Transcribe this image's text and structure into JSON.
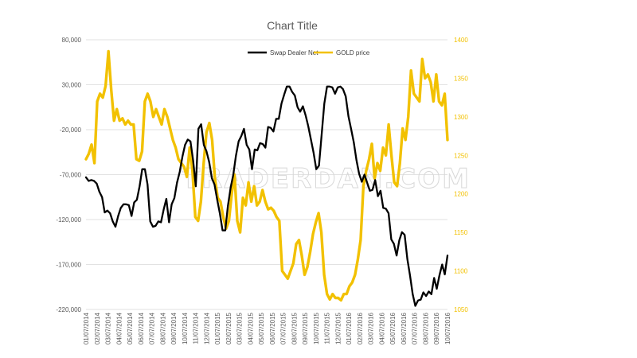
{
  "watermark": "TRADERDAN.COM",
  "chart_data": {
    "type": "line",
    "title": "Chart Title",
    "legend_position": "top-center",
    "grid": "horizontal",
    "x_tick_labels": [
      "01/07/2014",
      "02/07/2014",
      "03/07/2014",
      "04/07/2014",
      "05/07/2014",
      "06/07/2014",
      "07/07/2014",
      "08/07/2014",
      "09/07/2014",
      "10/07/2014",
      "11/07/2014",
      "12/07/2014",
      "01/07/2015",
      "02/07/2015",
      "03/07/2015",
      "04/07/2015",
      "05/07/2015",
      "06/07/2015",
      "07/07/2015",
      "08/07/2015",
      "09/07/2015",
      "10/07/2015",
      "11/07/2015",
      "12/07/2015",
      "01/07/2016",
      "02/07/2016",
      "03/07/2016",
      "04/07/2016",
      "05/07/2016",
      "06/07/2016",
      "07/07/2016",
      "08/07/2016",
      "09/07/2016",
      "10/07/2016"
    ],
    "y_left": {
      "min": -220000,
      "max": 80000,
      "step": 50000,
      "tick_labels": [
        "80,000",
        "30,000",
        "-20,000",
        "-70,000",
        "-120,000",
        "-170,000",
        "-220,000"
      ]
    },
    "y_right": {
      "min": 1050,
      "max": 1400,
      "step": 50,
      "tick_labels": [
        "1400",
        "1350",
        "1300",
        "1250",
        "1200",
        "1150",
        "1100",
        "1050"
      ]
    },
    "series": [
      {
        "name": "Swap Dealer Net",
        "color": "#000000",
        "axis": "left",
        "values": [
          -73000,
          -77000,
          -76000,
          -77000,
          -80000,
          -89000,
          -95000,
          -112000,
          -110000,
          -113000,
          -122000,
          -128000,
          -116000,
          -107000,
          -103000,
          -103000,
          -104000,
          -116000,
          -101000,
          -98000,
          -83000,
          -64000,
          -64000,
          -81000,
          -122000,
          -128000,
          -127000,
          -122000,
          -123000,
          -109000,
          -97000,
          -123000,
          -103000,
          -96000,
          -79000,
          -67000,
          -50000,
          -37000,
          -31000,
          -33000,
          -54000,
          -83000,
          -19000,
          -14000,
          -37000,
          -44000,
          -56000,
          -74000,
          -81000,
          -98000,
          -113000,
          -132000,
          -132000,
          -105000,
          -85000,
          -70000,
          -49000,
          -33000,
          -27000,
          -19000,
          -37000,
          -42000,
          -64000,
          -42000,
          -43000,
          -35000,
          -36000,
          -40000,
          -17000,
          -18000,
          -22000,
          -8000,
          -8000,
          9000,
          19000,
          28000,
          28000,
          22000,
          18000,
          5000,
          0,
          6000,
          -4000,
          -16000,
          -31000,
          -46000,
          -64000,
          -60000,
          -26000,
          9000,
          28000,
          28000,
          27000,
          20000,
          27000,
          28000,
          25000,
          17000,
          -5000,
          -19000,
          -34000,
          -54000,
          -69000,
          -78000,
          -70000,
          -79000,
          -88000,
          -87000,
          -76000,
          -94000,
          -88000,
          -107000,
          -108000,
          -113000,
          -142000,
          -147000,
          -160000,
          -143000,
          -134000,
          -137000,
          -164000,
          -182000,
          -203000,
          -216000,
          -210000,
          -209000,
          -201000,
          -205000,
          -200000,
          -203000,
          -185000,
          -197000,
          -182000,
          -170000,
          -181000,
          -160000
        ]
      },
      {
        "name": "GOLD price",
        "color": "#f2c100",
        "axis": "right",
        "values": [
          1245,
          1252,
          1264,
          1240,
          1320,
          1330,
          1325,
          1340,
          1385,
          1335,
          1295,
          1310,
          1295,
          1298,
          1290,
          1295,
          1290,
          1290,
          1245,
          1243,
          1255,
          1320,
          1330,
          1320,
          1300,
          1310,
          1300,
          1290,
          1310,
          1300,
          1285,
          1270,
          1260,
          1245,
          1240,
          1235,
          1222,
          1260,
          1230,
          1170,
          1165,
          1190,
          1240,
          1280,
          1292,
          1270,
          1220,
          1195,
          1190,
          1170,
          1155,
          1165,
          1200,
          1225,
          1165,
          1150,
          1195,
          1185,
          1215,
          1190,
          1210,
          1185,
          1190,
          1205,
          1190,
          1180,
          1182,
          1178,
          1170,
          1165,
          1100,
          1095,
          1090,
          1100,
          1110,
          1135,
          1140,
          1120,
          1095,
          1105,
          1125,
          1148,
          1163,
          1175,
          1150,
          1095,
          1070,
          1063,
          1070,
          1065,
          1065,
          1062,
          1070,
          1070,
          1080,
          1085,
          1095,
          1115,
          1140,
          1210,
          1230,
          1245,
          1265,
          1220,
          1240,
          1230,
          1260,
          1250,
          1290,
          1250,
          1215,
          1210,
          1240,
          1285,
          1270,
          1300,
          1360,
          1330,
          1325,
          1320,
          1375,
          1350,
          1355,
          1345,
          1320,
          1355,
          1320,
          1315,
          1330,
          1270
        ]
      }
    ]
  }
}
